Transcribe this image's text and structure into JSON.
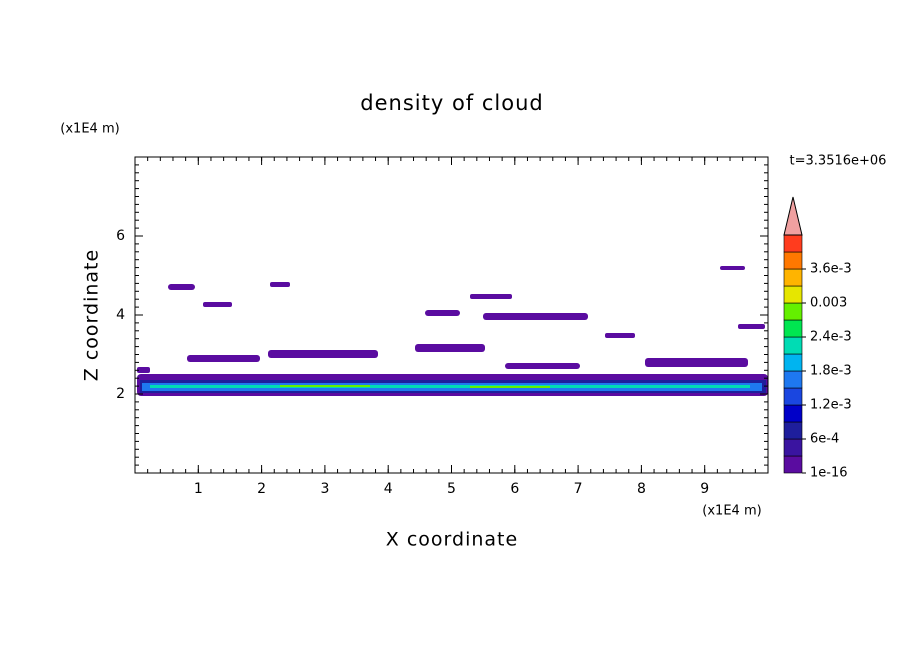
{
  "chart_data": {
    "type": "contour",
    "title": "density of cloud",
    "x_label": "X coordinate",
    "y_label": "Z coordinate",
    "x_unit": "(x1E4 m)",
    "y_unit": "(x1E4 m)",
    "time_label": "t=3.3516e+06",
    "xlim": [
      0,
      10
    ],
    "ylim": [
      0,
      8
    ],
    "xticks": [
      1,
      2,
      3,
      4,
      5,
      6,
      7,
      8,
      9
    ],
    "yticks": [
      2,
      4,
      6
    ],
    "colorbar": {
      "ticks": [
        1e-16,
        {
          "value": 0.0006,
          "label": "6e-4"
        },
        {
          "value": 0.0012,
          "label": "1.2e-3"
        },
        {
          "value": 0.0018,
          "label": "1.8e-3"
        },
        {
          "value": 0.0024,
          "label": "2.4e-3"
        },
        0.003,
        {
          "value": 0.0036,
          "label": "3.6e-3"
        }
      ],
      "colors": [
        "#5a0ca0",
        "#3a14a0",
        "#1e1e9c",
        "#0000c8",
        "#1a46e0",
        "#1e78f0",
        "#00b4f0",
        "#00dcb4",
        "#00e650",
        "#64f000",
        "#e6e600",
        "#ffb400",
        "#ff7800",
        "#ff3c1e"
      ],
      "extend_color": "#f0a0a0"
    }
  }
}
